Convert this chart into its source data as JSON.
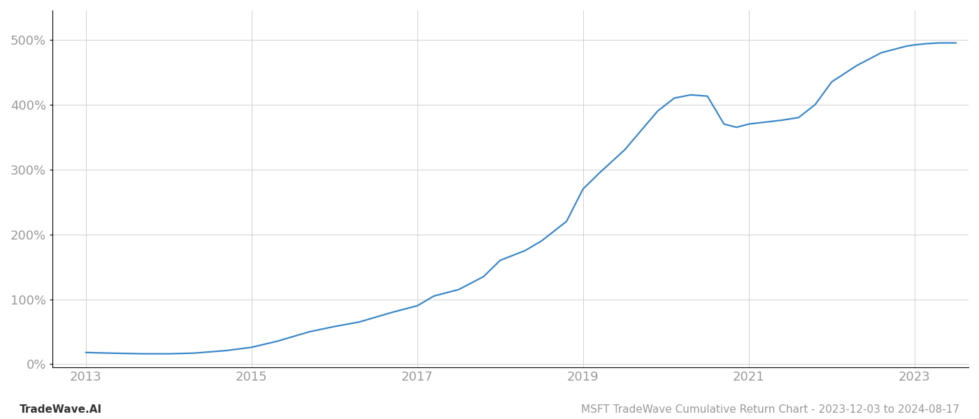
{
  "title": "MSFT TradeWave Cumulative Return Chart - 2023-12-03 to 2024-08-17",
  "watermark": "TradeWave.AI",
  "line_color": "#3a87c8",
  "background_color": "#ffffff",
  "grid_color": "#d0d0d0",
  "data_x": [
    2013.0,
    2013.3,
    2013.7,
    2014.0,
    2014.3,
    2014.7,
    2015.0,
    2015.3,
    2015.7,
    2016.0,
    2016.3,
    2016.7,
    2017.0,
    2017.2,
    2017.5,
    2017.8,
    2018.0,
    2018.3,
    2018.5,
    2018.8,
    2019.0,
    2019.2,
    2019.5,
    2019.7,
    2019.9,
    2020.1,
    2020.3,
    2020.5,
    2020.7,
    2020.85,
    2021.0,
    2021.2,
    2021.4,
    2021.6,
    2021.8,
    2022.0,
    2022.3,
    2022.6,
    2022.9,
    2023.0,
    2023.15,
    2023.3,
    2023.5
  ],
  "data_y": [
    18,
    17,
    16,
    16,
    17,
    21,
    26,
    35,
    50,
    58,
    65,
    80,
    90,
    105,
    115,
    135,
    160,
    175,
    190,
    220,
    270,
    295,
    330,
    360,
    390,
    410,
    415,
    413,
    370,
    365,
    370,
    373,
    376,
    380,
    400,
    435,
    460,
    480,
    490,
    492,
    494,
    495,
    495
  ],
  "xlim": [
    2012.6,
    2023.65
  ],
  "ylim": [
    -5,
    545
  ],
  "yticks": [
    0,
    100,
    200,
    300,
    400,
    500
  ],
  "xticks": [
    2013,
    2015,
    2017,
    2019,
    2021,
    2023
  ],
  "tick_label_color": "#999999",
  "spine_color": "#000000",
  "line_width": 1.6,
  "title_fontsize": 11,
  "watermark_fontsize": 11,
  "tick_fontsize": 13
}
